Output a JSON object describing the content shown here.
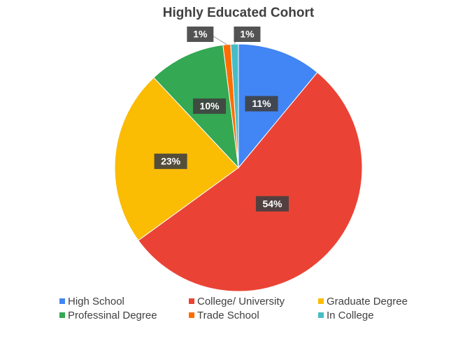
{
  "chart_data": {
    "type": "pie",
    "title": "Highly Educated Cohort",
    "categories": [
      "High School",
      "College/ University",
      "Graduate Degree",
      "Professinal Degree",
      "Trade School",
      "In College"
    ],
    "values": [
      11,
      54,
      23,
      10,
      1,
      1
    ],
    "value_labels": [
      "11%",
      "54%",
      "23%",
      "10%",
      "1%",
      "1%"
    ],
    "colors": [
      "#4285f4",
      "#ea4335",
      "#fbbc04",
      "#34a853",
      "#ff6d01",
      "#46bdc6"
    ],
    "legend": "bottom"
  }
}
